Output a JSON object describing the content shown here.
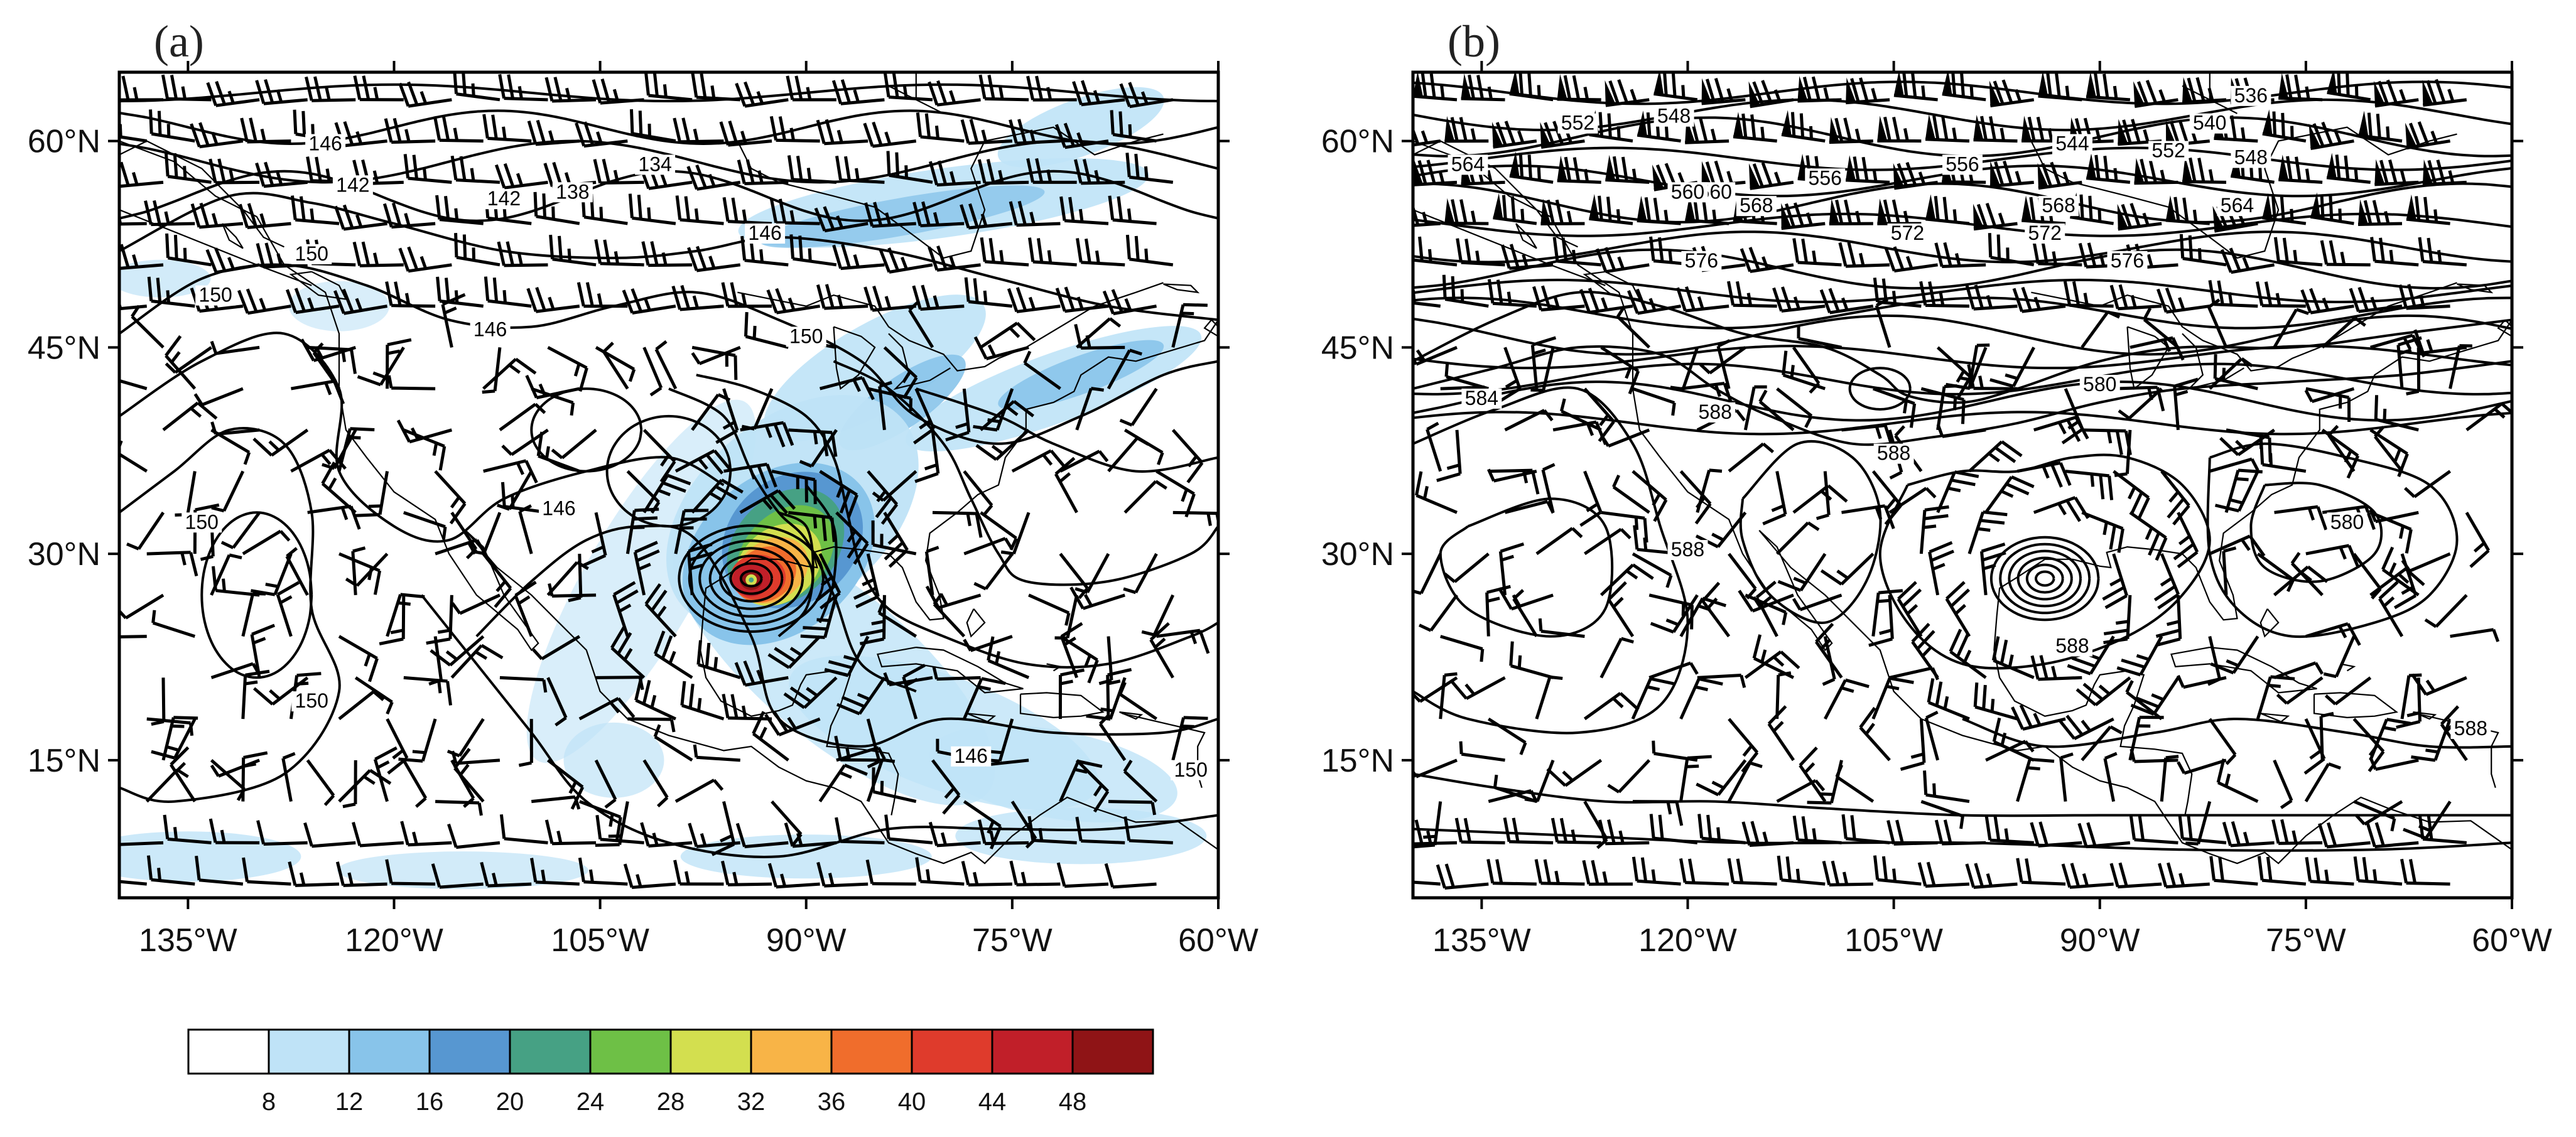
{
  "panels": [
    {
      "id": "a",
      "label": "(a)",
      "lon_labels": [
        "135°W",
        "120°W",
        "105°W",
        "90°W",
        "75°W",
        "60°W"
      ],
      "lat_labels": [
        "60°N",
        "45°N",
        "30°N",
        "15°N"
      ],
      "contour_labels": [
        "146",
        "142",
        "134",
        "138",
        "142",
        "146",
        "150",
        "150",
        "146",
        "150",
        "146",
        "150",
        "150",
        "146",
        "150"
      ],
      "cyclone_center": {
        "lon": -94,
        "lat": 28
      }
    },
    {
      "id": "b",
      "label": "(b)",
      "lon_labels": [
        "135°W",
        "120°W",
        "105°W",
        "90°W",
        "75°W",
        "60°W"
      ],
      "lat_labels": [
        "60°N",
        "45°N",
        "30°N",
        "15°N"
      ],
      "contour_labels": [
        "552",
        "548",
        "564",
        "560",
        "556",
        "568",
        "560",
        "556",
        "544",
        "540",
        "536",
        "552",
        "548",
        "568",
        "564",
        "572",
        "572",
        "576",
        "576",
        "584",
        "588",
        "580",
        "588",
        "588",
        "588",
        "580",
        "588"
      ],
      "cyclone_center": {
        "lon": -94,
        "lat": 28
      }
    }
  ],
  "colorbar": {
    "labels": [
      "8",
      "12",
      "16",
      "20",
      "24",
      "28",
      "32",
      "36",
      "40",
      "44",
      "48"
    ],
    "colors": [
      "#ffffff",
      "#bfe3f7",
      "#88c4ea",
      "#5797d1",
      "#46a184",
      "#6ec046",
      "#d3df4f",
      "#f8b447",
      "#f06d2c",
      "#df3b2c",
      "#c11f29",
      "#8f1416"
    ]
  },
  "chart_data": [
    {
      "type": "map",
      "panel": "(a)",
      "fields": [
        "filled wind speed",
        "contours",
        "wind barbs"
      ],
      "lon_range": [
        -140,
        -60
      ],
      "lat_range": [
        5,
        65
      ],
      "contour_levels_labeled": [
        134,
        138,
        142,
        146,
        150
      ],
      "shading_levels": [
        8,
        12,
        16,
        20,
        24,
        28,
        32,
        36,
        40,
        44,
        48
      ]
    },
    {
      "type": "map",
      "panel": "(b)",
      "fields": [
        "contours",
        "wind barbs"
      ],
      "lon_range": [
        -140,
        -60
      ],
      "lat_range": [
        5,
        65
      ],
      "contour_levels_labeled": [
        536,
        540,
        544,
        548,
        552,
        556,
        560,
        564,
        568,
        572,
        576,
        580,
        584,
        588
      ]
    }
  ]
}
